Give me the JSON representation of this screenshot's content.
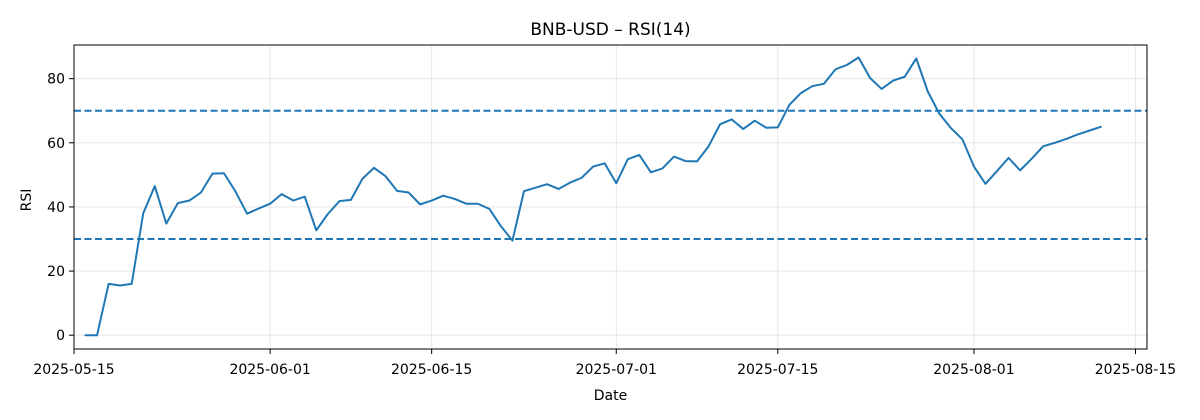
{
  "chart_data": {
    "type": "line",
    "title": "BNB-USD – RSI(14)",
    "xlabel": "Date",
    "ylabel": "RSI",
    "x_type": "date",
    "xlim": [
      "2025-05-15",
      "2025-08-16"
    ],
    "ylim": [
      -4.3,
      90.5
    ],
    "grid": true,
    "x_ticks": [
      "2025-05-15",
      "2025-06-01",
      "2025-06-15",
      "2025-07-01",
      "2025-07-15",
      "2025-08-01",
      "2025-08-15"
    ],
    "y_ticks": [
      0,
      20,
      40,
      60,
      80
    ],
    "series": [
      {
        "color": "#1f77b4",
        "x": [
          "2025-05-16",
          "2025-05-17",
          "2025-05-18",
          "2025-05-19",
          "2025-05-20",
          "2025-05-21",
          "2025-05-22",
          "2025-05-23",
          "2025-05-24",
          "2025-05-25",
          "2025-05-26",
          "2025-05-27",
          "2025-05-28",
          "2025-05-29",
          "2025-05-30",
          "2025-05-31",
          "2025-06-01",
          "2025-06-02",
          "2025-06-03",
          "2025-06-04",
          "2025-06-05",
          "2025-06-06",
          "2025-06-07",
          "2025-06-08",
          "2025-06-09",
          "2025-06-10",
          "2025-06-11",
          "2025-06-12",
          "2025-06-13",
          "2025-06-14",
          "2025-06-15",
          "2025-06-16",
          "2025-06-17",
          "2025-06-18",
          "2025-06-19",
          "2025-06-20",
          "2025-06-21",
          "2025-06-22",
          "2025-06-23",
          "2025-06-24",
          "2025-06-25",
          "2025-06-26",
          "2025-06-27",
          "2025-06-28",
          "2025-06-29",
          "2025-06-30",
          "2025-07-01",
          "2025-07-02",
          "2025-07-03",
          "2025-07-04",
          "2025-07-05",
          "2025-07-06",
          "2025-07-07",
          "2025-07-08",
          "2025-07-09",
          "2025-07-10",
          "2025-07-11",
          "2025-07-12",
          "2025-07-13",
          "2025-07-14",
          "2025-07-15",
          "2025-07-16",
          "2025-07-17",
          "2025-07-18",
          "2025-07-19",
          "2025-07-20",
          "2025-07-21",
          "2025-07-22",
          "2025-07-23",
          "2025-07-24",
          "2025-07-25",
          "2025-07-26",
          "2025-07-27",
          "2025-07-28",
          "2025-07-29",
          "2025-07-30",
          "2025-07-31",
          "2025-08-01",
          "2025-08-02",
          "2025-08-03",
          "2025-08-04",
          "2025-08-05",
          "2025-08-06",
          "2025-08-07",
          "2025-08-08",
          "2025-08-09",
          "2025-08-10",
          "2025-08-11",
          "2025-08-12"
        ],
        "values": [
          0.0,
          0.0,
          16.0,
          15.5,
          16.0,
          38.0,
          46.5,
          34.8,
          41.2,
          42.0,
          44.5,
          50.4,
          50.5,
          44.8,
          37.9,
          39.5,
          41.0,
          44.0,
          42.0,
          43.2,
          32.7,
          37.8,
          41.8,
          42.2,
          48.8,
          52.2,
          49.6,
          45.0,
          44.5,
          40.8,
          42.0,
          43.5,
          42.5,
          41.0,
          41.0,
          39.4,
          34.0,
          29.5,
          44.9,
          46.0,
          47.1,
          45.6,
          47.6,
          49.1,
          52.6,
          53.6,
          47.4,
          54.9,
          56.2,
          50.8,
          52.0,
          55.7,
          54.3,
          54.2,
          58.9,
          65.8,
          67.3,
          64.3,
          66.9,
          64.7,
          64.8,
          71.8,
          75.5,
          77.7,
          78.4,
          82.9,
          84.3,
          86.6,
          80.2,
          76.8,
          79.4,
          80.6,
          86.3,
          76.0,
          69.1,
          64.6,
          61.1,
          52.6,
          47.2,
          51.2,
          55.3,
          51.4,
          55.0,
          58.9,
          60.0,
          61.2,
          62.6,
          63.8,
          65.0
        ]
      }
    ],
    "reference_lines": [
      {
        "y": 70,
        "color": "#1f77b4",
        "style": "dashed"
      },
      {
        "y": 30,
        "color": "#1f77b4",
        "style": "dashed"
      }
    ]
  }
}
